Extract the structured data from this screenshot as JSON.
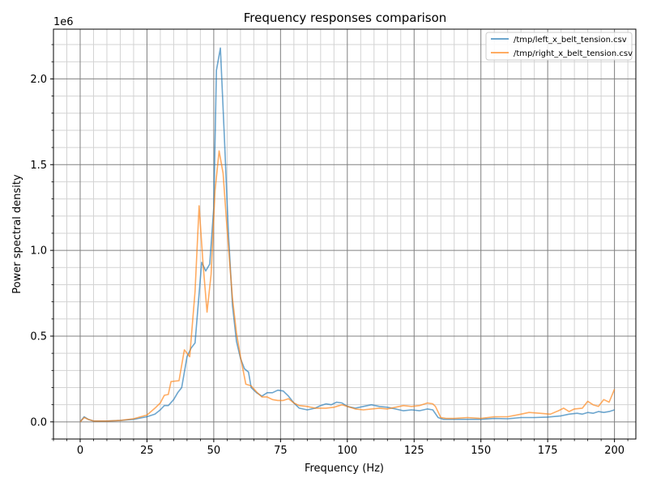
{
  "chart_data": {
    "type": "line",
    "title": "Frequency responses comparison",
    "xlabel": "Frequency (Hz)",
    "ylabel": "Power spectral density",
    "y_offset_label": "1e6",
    "xlim": [
      -10,
      208
    ],
    "ylim": [
      -100000,
      2290000
    ],
    "x_ticks": [
      0,
      25,
      50,
      75,
      100,
      125,
      150,
      175,
      200
    ],
    "x_tick_labels": [
      "0",
      "25",
      "50",
      "75",
      "100",
      "125",
      "150",
      "175",
      "200"
    ],
    "y_ticks": [
      0,
      500000,
      1000000,
      1500000,
      2000000
    ],
    "y_tick_labels": [
      "0.0",
      "0.5",
      "1.0",
      "1.5",
      "2.0"
    ],
    "grid": "major and minor",
    "legend_position": "upper right",
    "series": [
      {
        "name": "/tmp/left_x_belt_tension.csv",
        "color": "#1f77b4",
        "points": [
          [
            0,
            0
          ],
          [
            1.5,
            30000
          ],
          [
            3,
            15000
          ],
          [
            5,
            5000
          ],
          [
            10,
            5000
          ],
          [
            15,
            8000
          ],
          [
            20,
            15000
          ],
          [
            25,
            30000
          ],
          [
            28,
            45000
          ],
          [
            30,
            70000
          ],
          [
            31.5,
            95000
          ],
          [
            33,
            95000
          ],
          [
            35,
            130000
          ],
          [
            36.5,
            170000
          ],
          [
            38,
            200000
          ],
          [
            40,
            380000
          ],
          [
            41.5,
            430000
          ],
          [
            43,
            460000
          ],
          [
            44,
            650000
          ],
          [
            45.5,
            930000
          ],
          [
            47,
            880000
          ],
          [
            48.5,
            920000
          ],
          [
            50,
            1250000
          ],
          [
            51,
            2050000
          ],
          [
            52.5,
            2180000
          ],
          [
            54,
            1650000
          ],
          [
            55.5,
            1100000
          ],
          [
            57,
            680000
          ],
          [
            58.5,
            470000
          ],
          [
            60,
            370000
          ],
          [
            61.5,
            310000
          ],
          [
            63,
            290000
          ],
          [
            64,
            200000
          ],
          [
            66,
            170000
          ],
          [
            68,
            150000
          ],
          [
            70,
            170000
          ],
          [
            72,
            170000
          ],
          [
            74,
            185000
          ],
          [
            76,
            180000
          ],
          [
            78,
            150000
          ],
          [
            80,
            110000
          ],
          [
            82,
            80000
          ],
          [
            85,
            70000
          ],
          [
            88,
            80000
          ],
          [
            90,
            95000
          ],
          [
            92,
            105000
          ],
          [
            94,
            100000
          ],
          [
            96,
            115000
          ],
          [
            98,
            110000
          ],
          [
            100,
            90000
          ],
          [
            103,
            80000
          ],
          [
            106,
            90000
          ],
          [
            109,
            100000
          ],
          [
            112,
            90000
          ],
          [
            115,
            85000
          ],
          [
            118,
            75000
          ],
          [
            121,
            65000
          ],
          [
            124,
            70000
          ],
          [
            127,
            65000
          ],
          [
            130,
            75000
          ],
          [
            132,
            70000
          ],
          [
            134,
            25000
          ],
          [
            136,
            15000
          ],
          [
            140,
            15000
          ],
          [
            145,
            15000
          ],
          [
            150,
            15000
          ],
          [
            155,
            20000
          ],
          [
            160,
            18000
          ],
          [
            165,
            25000
          ],
          [
            170,
            25000
          ],
          [
            175,
            28000
          ],
          [
            180,
            35000
          ],
          [
            183,
            45000
          ],
          [
            186,
            50000
          ],
          [
            188,
            45000
          ],
          [
            190,
            55000
          ],
          [
            192,
            50000
          ],
          [
            194,
            60000
          ],
          [
            196,
            55000
          ],
          [
            198,
            60000
          ],
          [
            200,
            70000
          ]
        ]
      },
      {
        "name": "/tmp/right_x_belt_tension.csv",
        "color": "#ff7f0e",
        "points": [
          [
            0,
            0
          ],
          [
            1.5,
            25000
          ],
          [
            3,
            15000
          ],
          [
            5,
            5000
          ],
          [
            10,
            5000
          ],
          [
            15,
            8000
          ],
          [
            20,
            18000
          ],
          [
            25,
            40000
          ],
          [
            28,
            80000
          ],
          [
            30,
            110000
          ],
          [
            31.5,
            155000
          ],
          [
            33,
            160000
          ],
          [
            34,
            235000
          ],
          [
            37,
            240000
          ],
          [
            39,
            420000
          ],
          [
            41,
            380000
          ],
          [
            43,
            760000
          ],
          [
            44.5,
            1260000
          ],
          [
            46,
            920000
          ],
          [
            47.5,
            640000
          ],
          [
            49,
            860000
          ],
          [
            50.5,
            1350000
          ],
          [
            52,
            1580000
          ],
          [
            53.5,
            1450000
          ],
          [
            55,
            1120000
          ],
          [
            57,
            720000
          ],
          [
            58.5,
            520000
          ],
          [
            60,
            380000
          ],
          [
            62,
            220000
          ],
          [
            64,
            210000
          ],
          [
            66,
            175000
          ],
          [
            68,
            145000
          ],
          [
            70,
            145000
          ],
          [
            72,
            130000
          ],
          [
            74,
            125000
          ],
          [
            76,
            125000
          ],
          [
            78,
            135000
          ],
          [
            80,
            110000
          ],
          [
            82,
            95000
          ],
          [
            85,
            90000
          ],
          [
            88,
            80000
          ],
          [
            90,
            80000
          ],
          [
            92,
            80000
          ],
          [
            95,
            85000
          ],
          [
            98,
            100000
          ],
          [
            100,
            90000
          ],
          [
            103,
            75000
          ],
          [
            106,
            70000
          ],
          [
            109,
            75000
          ],
          [
            112,
            80000
          ],
          [
            115,
            75000
          ],
          [
            118,
            85000
          ],
          [
            121,
            95000
          ],
          [
            124,
            90000
          ],
          [
            127,
            95000
          ],
          [
            130,
            110000
          ],
          [
            132,
            105000
          ],
          [
            133,
            90000
          ],
          [
            135,
            25000
          ],
          [
            137,
            20000
          ],
          [
            140,
            20000
          ],
          [
            145,
            25000
          ],
          [
            150,
            20000
          ],
          [
            155,
            30000
          ],
          [
            160,
            30000
          ],
          [
            165,
            45000
          ],
          [
            168,
            55000
          ],
          [
            172,
            50000
          ],
          [
            176,
            45000
          ],
          [
            179,
            65000
          ],
          [
            181,
            80000
          ],
          [
            183,
            60000
          ],
          [
            185,
            75000
          ],
          [
            188,
            80000
          ],
          [
            190,
            120000
          ],
          [
            192,
            100000
          ],
          [
            194,
            90000
          ],
          [
            196,
            130000
          ],
          [
            198,
            115000
          ],
          [
            200,
            190000
          ]
        ]
      }
    ]
  }
}
